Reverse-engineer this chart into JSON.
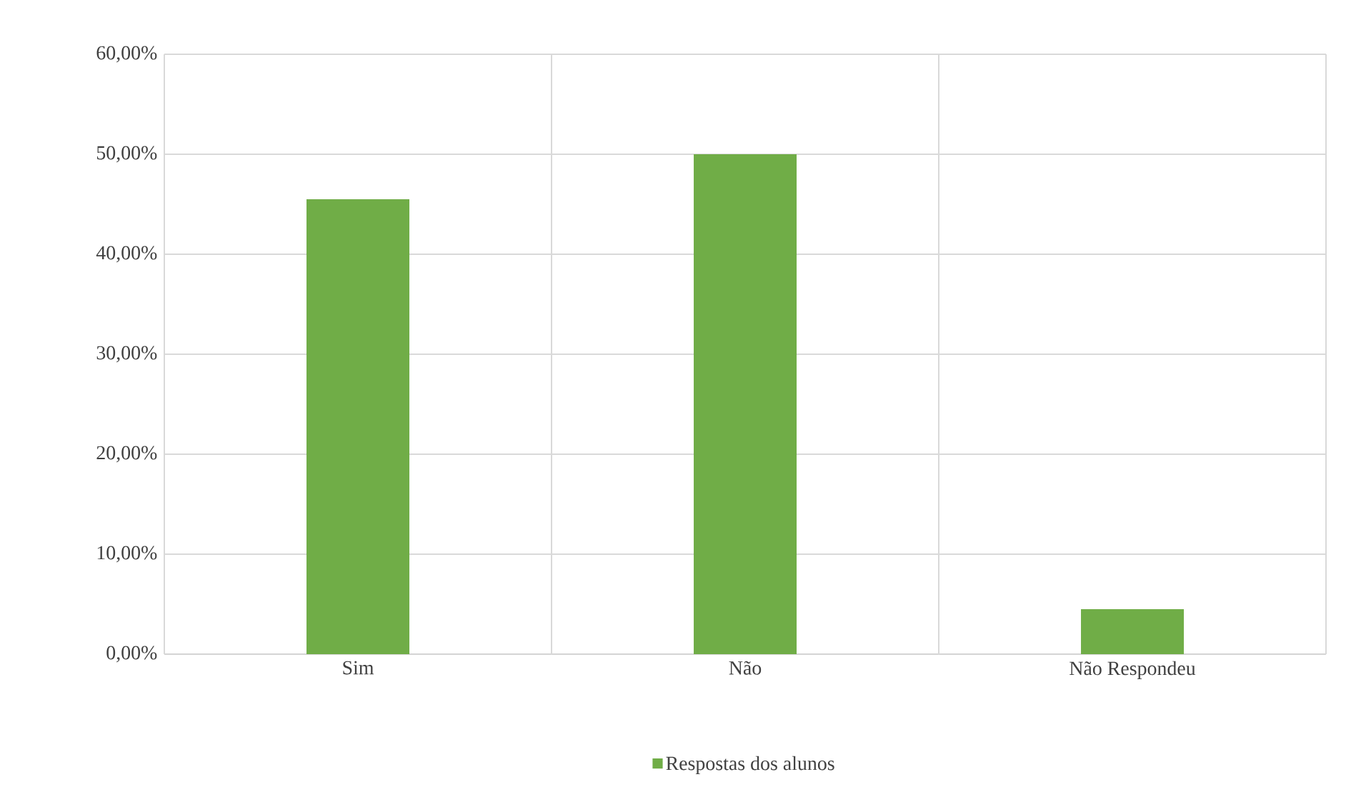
{
  "chart_data": {
    "type": "bar",
    "categories": [
      "Sim",
      "Não",
      "Não Respondeu"
    ],
    "series": [
      {
        "name": "Respostas dos alunos",
        "color": "#70ad47",
        "values": [
          45.5,
          50,
          4.5
        ]
      }
    ],
    "ylim": [
      0,
      60
    ],
    "yticks": [
      {
        "value": 0,
        "label": "0,00%"
      },
      {
        "value": 10,
        "label": "10,00%"
      },
      {
        "value": 20,
        "label": "20,00%"
      },
      {
        "value": 30,
        "label": "30,00%"
      },
      {
        "value": 40,
        "label": "40,00%"
      },
      {
        "value": 50,
        "label": "50,00%"
      },
      {
        "value": 60,
        "label": "60,00%"
      }
    ],
    "grid": true,
    "legend": "bottom"
  }
}
